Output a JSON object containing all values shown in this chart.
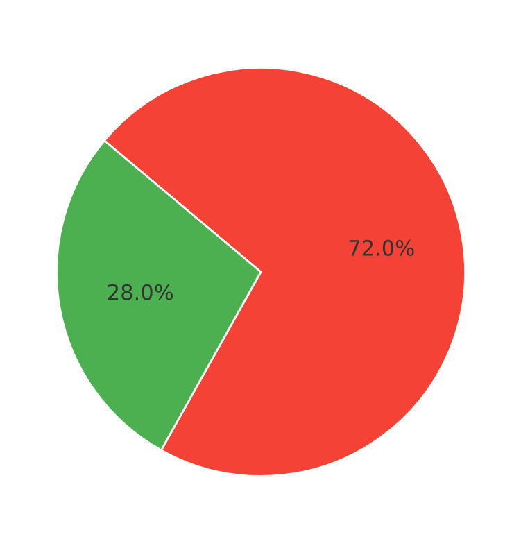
{
  "chart_data": {
    "type": "pie",
    "categories": [
      null,
      null
    ],
    "values": [
      72.0,
      28.0
    ],
    "colors": [
      "#f44336",
      "#4caf50"
    ],
    "value_labels": [
      "72.0%",
      "28.0%"
    ]
  }
}
